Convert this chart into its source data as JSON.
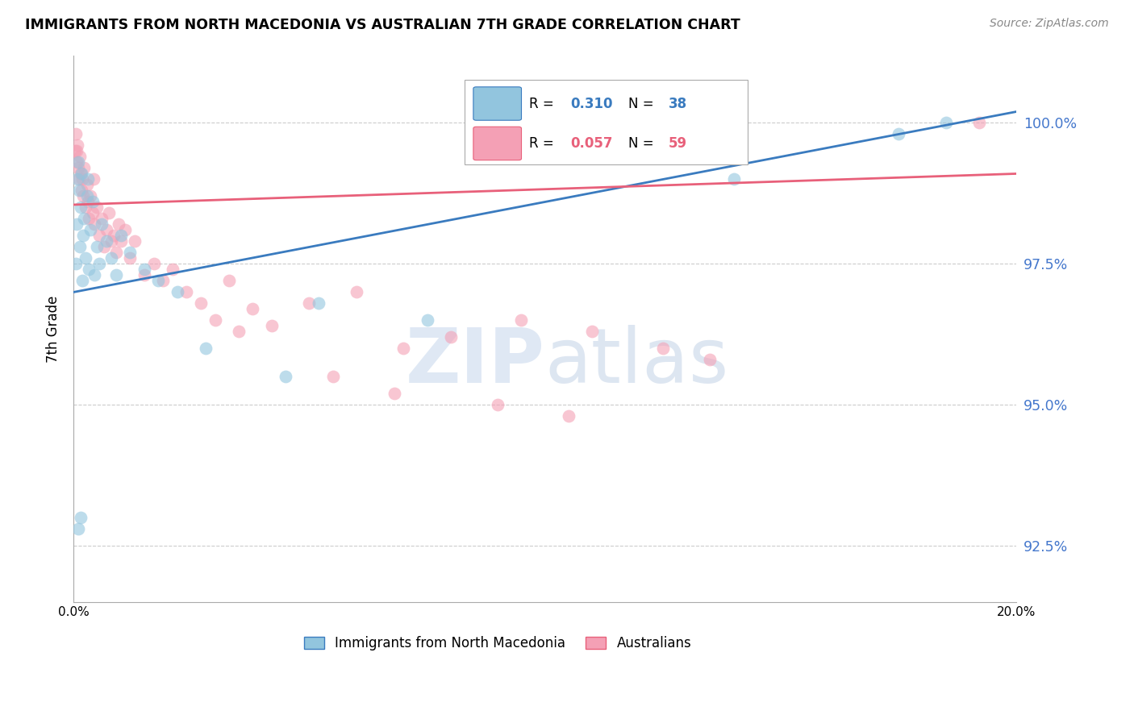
{
  "title": "IMMIGRANTS FROM NORTH MACEDONIA VS AUSTRALIAN 7TH GRADE CORRELATION CHART",
  "source": "Source: ZipAtlas.com",
  "ylabel": "7th Grade",
  "ytick_labels": [
    "92.5%",
    "95.0%",
    "97.5%",
    "100.0%"
  ],
  "ytick_values": [
    92.5,
    95.0,
    97.5,
    100.0
  ],
  "xlim": [
    0.0,
    20.0
  ],
  "ylim": [
    91.5,
    101.2
  ],
  "blue_R": 0.31,
  "blue_N": 38,
  "pink_R": 0.057,
  "pink_N": 59,
  "blue_color": "#92c5de",
  "pink_color": "#f4a0b5",
  "blue_line_color": "#3a7bbf",
  "pink_line_color": "#e8607a",
  "legend_label_blue": "Immigrants from North Macedonia",
  "legend_label_pink": "Australians",
  "watermark_zip": "ZIP",
  "watermark_atlas": "atlas",
  "blue_line_x0": 0.0,
  "blue_line_y0": 97.0,
  "blue_line_x1": 20.0,
  "blue_line_y1": 100.2,
  "pink_line_x0": 0.0,
  "pink_line_y0": 98.55,
  "pink_line_x1": 20.0,
  "pink_line_y1": 99.1,
  "blue_dots_x": [
    0.05,
    0.07,
    0.08,
    0.1,
    0.12,
    0.13,
    0.15,
    0.17,
    0.18,
    0.2,
    0.22,
    0.25,
    0.28,
    0.3,
    0.32,
    0.35,
    0.4,
    0.45,
    0.5,
    0.55,
    0.6,
    0.7,
    0.8,
    0.9,
    1.0,
    1.2,
    1.5,
    1.8,
    2.2,
    2.8,
    4.5,
    5.2,
    7.5,
    14.0,
    17.5,
    18.5,
    0.1,
    0.15
  ],
  "blue_dots_y": [
    97.5,
    98.2,
    99.0,
    99.3,
    98.8,
    97.8,
    98.5,
    99.1,
    97.2,
    98.0,
    98.3,
    97.6,
    98.7,
    99.0,
    97.4,
    98.1,
    98.6,
    97.3,
    97.8,
    97.5,
    98.2,
    97.9,
    97.6,
    97.3,
    98.0,
    97.7,
    97.4,
    97.2,
    97.0,
    96.0,
    95.5,
    96.8,
    96.5,
    99.0,
    99.8,
    100.0,
    92.8,
    93.0
  ],
  "pink_dots_x": [
    0.03,
    0.05,
    0.07,
    0.08,
    0.1,
    0.12,
    0.13,
    0.15,
    0.17,
    0.18,
    0.2,
    0.22,
    0.25,
    0.28,
    0.3,
    0.32,
    0.35,
    0.4,
    0.42,
    0.45,
    0.5,
    0.55,
    0.6,
    0.65,
    0.7,
    0.75,
    0.8,
    0.85,
    0.9,
    0.95,
    1.0,
    1.1,
    1.2,
    1.3,
    1.5,
    1.7,
    1.9,
    2.1,
    2.4,
    2.7,
    3.0,
    3.3,
    3.5,
    3.8,
    4.2,
    5.0,
    6.0,
    7.0,
    8.0,
    9.5,
    11.0,
    12.5,
    13.5,
    5.5,
    6.8,
    9.0,
    10.5,
    19.2,
    0.06
  ],
  "pink_dots_y": [
    99.5,
    99.8,
    99.3,
    99.6,
    99.2,
    99.0,
    99.4,
    99.1,
    98.8,
    99.0,
    98.7,
    99.2,
    98.5,
    98.9,
    98.6,
    98.3,
    98.7,
    98.4,
    99.0,
    98.2,
    98.5,
    98.0,
    98.3,
    97.8,
    98.1,
    98.4,
    97.9,
    98.0,
    97.7,
    98.2,
    97.9,
    98.1,
    97.6,
    97.9,
    97.3,
    97.5,
    97.2,
    97.4,
    97.0,
    96.8,
    96.5,
    97.2,
    96.3,
    96.7,
    96.4,
    96.8,
    97.0,
    96.0,
    96.2,
    96.5,
    96.3,
    96.0,
    95.8,
    95.5,
    95.2,
    95.0,
    94.8,
    100.0,
    99.5
  ]
}
